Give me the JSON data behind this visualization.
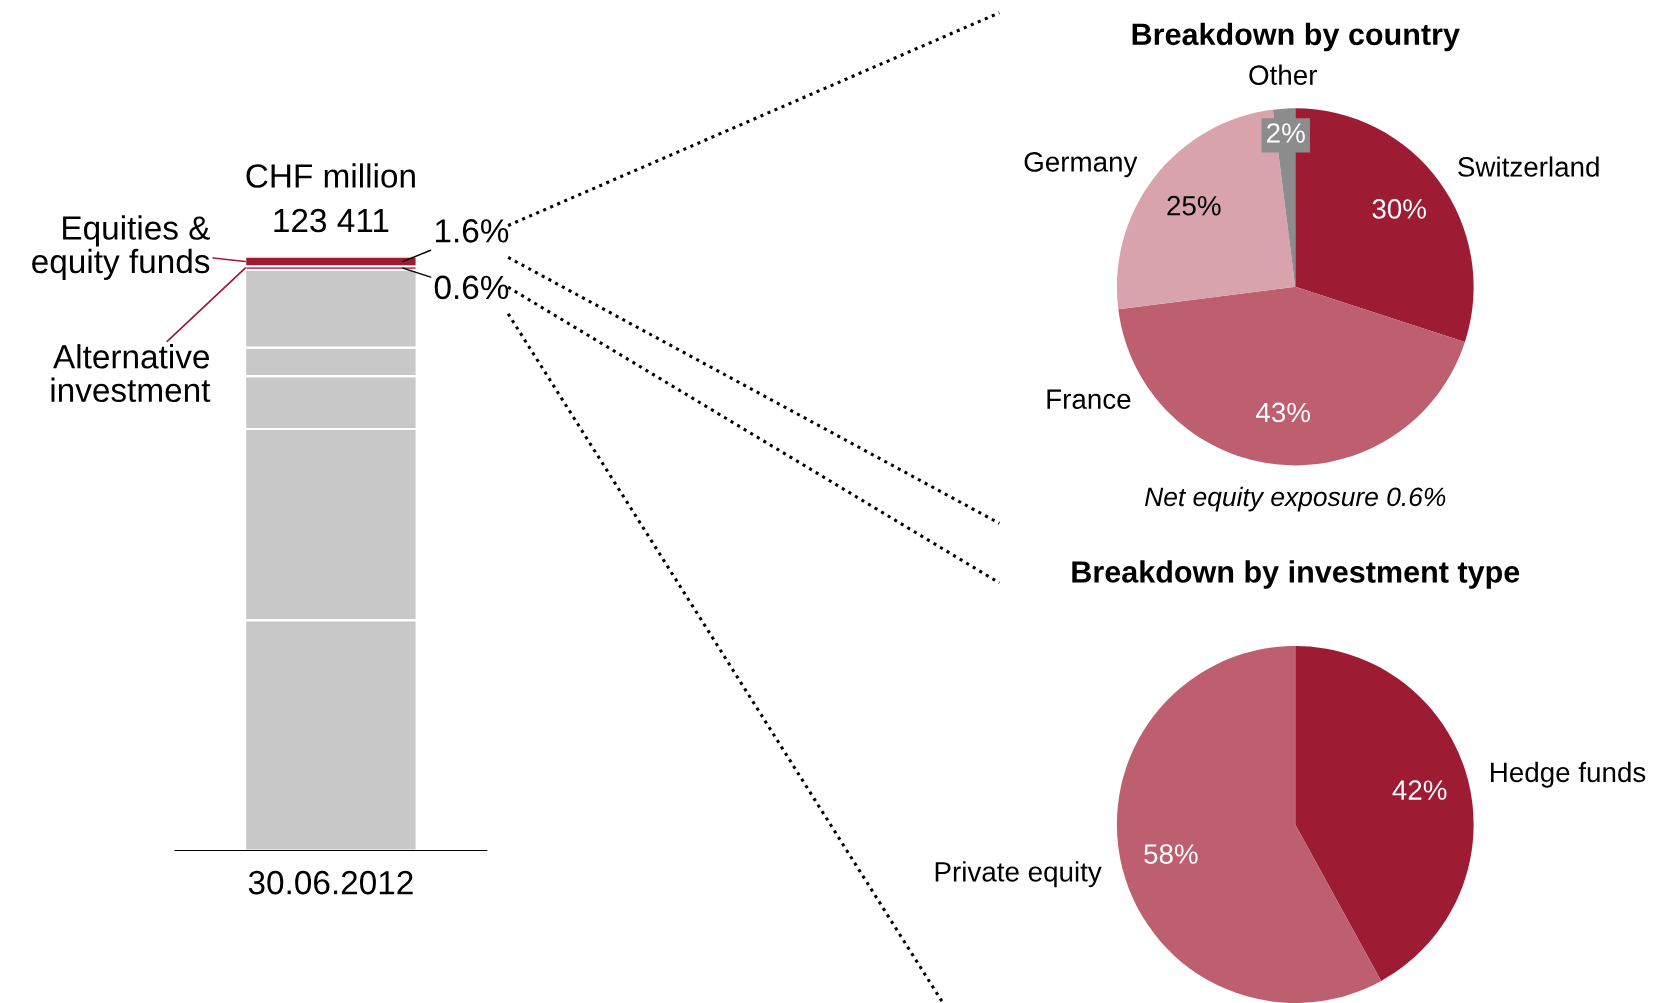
{
  "chart_data": [
    {
      "type": "bar",
      "stacked": true,
      "categories": [
        "30.06.2012"
      ],
      "ylim": [
        0,
        100
      ],
      "tick_labels": "x",
      "annotations": [
        "CHF million",
        "123 411"
      ],
      "series": [
        {
          "color": "#c8c8c8",
          "values": [
            38.8
          ]
        },
        {
          "color": "#c8c8c8",
          "values": [
            32.2
          ]
        },
        {
          "color": "#c8c8c8",
          "values": [
            8.9
          ]
        },
        {
          "color": "#c8c8c8",
          "values": [
            4.8
          ]
        },
        {
          "color": "#c8c8c8",
          "values": [
            13.1
          ]
        },
        {
          "name": "Alternative investment",
          "color": "#9e1b34",
          "values": [
            0.6
          ],
          "value_labels": [
            "0.6%"
          ]
        },
        {
          "name": "Equities & equity funds",
          "color": "#9e1b34",
          "values": [
            1.6
          ],
          "value_labels": [
            "1.6%"
          ]
        }
      ]
    },
    {
      "type": "pie",
      "title": "Breakdown by country",
      "categories": [
        "Switzerland",
        "France",
        "Germany",
        "Other"
      ],
      "values": [
        30,
        43,
        25,
        2
      ],
      "colors": [
        "#9e1b34",
        "#be5f70",
        "#d9a3ae",
        "#8c8c8c"
      ],
      "value_labels": [
        "30%",
        "43%",
        "25%",
        "2%"
      ],
      "annotations": [
        "Net equity exposure 0.6%"
      ]
    },
    {
      "type": "pie",
      "title": "Breakdown by investment type",
      "categories": [
        "Hedge funds",
        "Private equity"
      ],
      "values": [
        42,
        58
      ],
      "colors": [
        "#9e1b34",
        "#be5f70"
      ],
      "value_labels": [
        "42%",
        "58%"
      ]
    }
  ]
}
